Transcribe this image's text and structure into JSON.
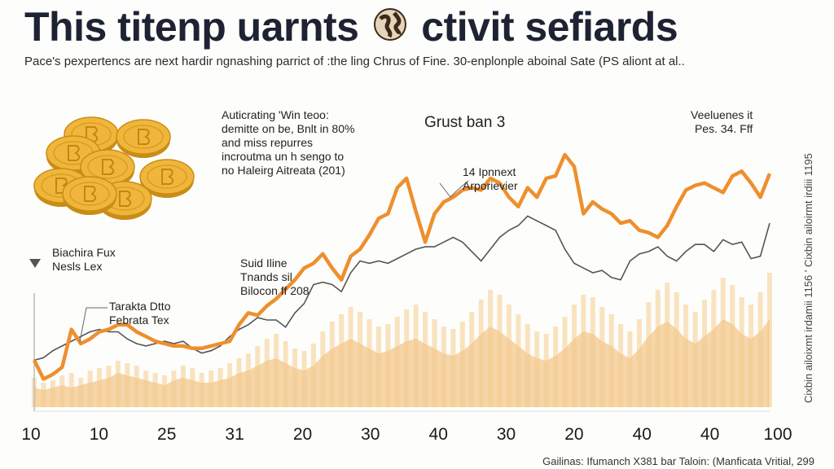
{
  "page": {
    "headline_left": "This titenp uarnts",
    "headline_right": "ctivit sefiards",
    "globe_icon": "globe-coin-icon",
    "subtitle": "Pace's pexpertencs are next hardir ngnashing parrict of :the ling Chrus of Fine. 30-enplonple aboinal Sate (PS aliont at al..",
    "side_text": "Cixbin ailoixmt irdamii 1156 ' Cixbin ailoirmt irdiii 1195",
    "footer": "Gailinas: Ifumanch X381 bar Taloin: (Manficata Vritial, 299"
  },
  "coins": {
    "icon": "gold-coin-icon",
    "color": "#f0b63c",
    "edge_color": "#c98d17",
    "count": 8
  },
  "annotations": {
    "top_left": "Auticrating 'Win teoo:\ndemitte on be, Bnlt in 80%\nand miss repurres\nincroutma un h sengo to\nno Haleirg Aitreata (201)",
    "center_title": "Grust ban 3",
    "peak": "14 Ipnnext\nArporievier",
    "top_right": "Veeluenes it\nPes. 34. Fff",
    "left_marker": "Biachira Fux\nNesls Lex",
    "lower_left": "Tarakta Dtto\nFebrata Tex",
    "middle": "Suid Iline\nTnands sil\nBilocon ff 208"
  },
  "colors": {
    "orange_series": "#ee8f2e",
    "gray_series": "#555555",
    "volume_dark": "#f3c88c",
    "volume_light": "#f7dcb0",
    "axis": "#bbbbbb"
  },
  "chart_data": {
    "type": "line",
    "x_tick_labels": [
      "10",
      "10",
      "25",
      "31",
      "20",
      "30",
      "40",
      "30",
      "20",
      "40",
      "40",
      "100"
    ],
    "x_count": 80,
    "ylim": [
      0,
      100
    ],
    "series": [
      {
        "color": "#ee8f2e",
        "values": [
          13,
          5,
          7,
          10,
          26,
          20,
          22,
          25,
          26,
          28,
          28,
          25,
          23,
          21,
          20,
          19,
          19,
          18,
          18,
          19,
          20,
          21,
          28,
          33,
          32,
          36,
          39,
          43,
          47,
          52,
          54,
          58,
          52,
          47,
          57,
          60,
          66,
          73,
          75,
          86,
          90,
          76,
          63,
          75,
          80,
          82,
          85,
          86,
          85,
          90,
          88,
          82,
          78,
          86,
          82,
          90,
          91,
          100,
          95,
          75,
          80,
          77,
          75,
          71,
          72,
          68,
          67,
          65,
          70,
          78,
          85,
          87,
          88,
          86,
          84,
          91,
          93,
          88,
          82,
          92
        ]
      },
      {
        "color": "#555555",
        "values": [
          13,
          14,
          17,
          19,
          21,
          23,
          25,
          26,
          25,
          25,
          22,
          20,
          19,
          20,
          21,
          20,
          21,
          18,
          16,
          17,
          19,
          23,
          26,
          28,
          31,
          30,
          30,
          27,
          33,
          37,
          45,
          46,
          45,
          42,
          50,
          55,
          54,
          55,
          54,
          56,
          58,
          60,
          61,
          61,
          63,
          65,
          63,
          59,
          55,
          60,
          65,
          68,
          70,
          74,
          72,
          70,
          68,
          60,
          54,
          52,
          50,
          51,
          48,
          47,
          55,
          58,
          59,
          61,
          57,
          55,
          59,
          62,
          62,
          59,
          64,
          62,
          63,
          56,
          57,
          71
        ]
      }
    ],
    "volume_area": [
      8,
      7,
      8,
      9,
      8,
      9,
      10,
      11,
      12,
      14,
      13,
      12,
      11,
      10,
      9,
      11,
      12,
      11,
      10,
      10,
      11,
      12,
      14,
      15,
      17,
      19,
      20,
      18,
      16,
      15,
      17,
      21,
      24,
      26,
      28,
      26,
      24,
      22,
      23,
      25,
      27,
      28,
      26,
      24,
      22,
      21,
      23,
      26,
      30,
      33,
      31,
      28,
      25,
      22,
      20,
      19,
      21,
      24,
      28,
      31,
      30,
      27,
      25,
      22,
      20,
      24,
      29,
      33,
      35,
      32,
      28,
      26,
      29,
      32,
      36,
      34,
      30,
      28,
      31,
      36
    ],
    "volume_bars": [
      12,
      10,
      11,
      13,
      14,
      12,
      15,
      16,
      17,
      19,
      18,
      17,
      15,
      14,
      13,
      15,
      17,
      16,
      14,
      15,
      16,
      18,
      20,
      22,
      25,
      28,
      30,
      27,
      24,
      23,
      26,
      31,
      35,
      38,
      41,
      39,
      36,
      33,
      34,
      37,
      40,
      42,
      39,
      36,
      33,
      32,
      35,
      39,
      44,
      48,
      46,
      42,
      38,
      34,
      31,
      30,
      33,
      37,
      42,
      46,
      45,
      41,
      38,
      34,
      31,
      36,
      43,
      48,
      51,
      47,
      42,
      39,
      44,
      48,
      53,
      50,
      45,
      42,
      47,
      55
    ]
  }
}
